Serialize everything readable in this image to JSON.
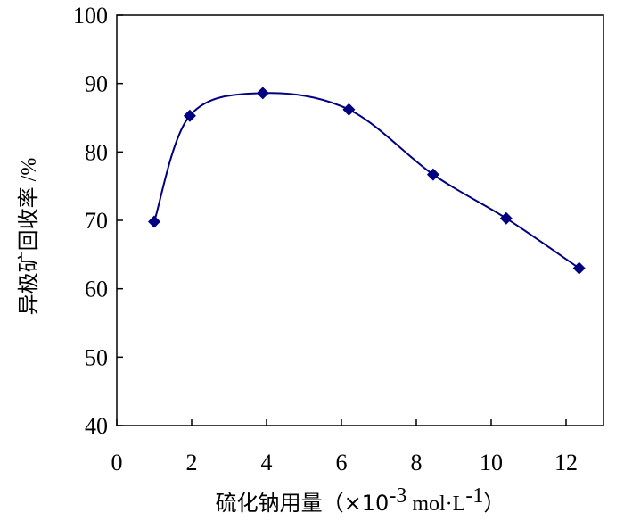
{
  "chart_data": {
    "type": "line",
    "title": "",
    "xlabel": "硫化钠用量（×10-3 mol·L-1）",
    "xlabel_parts": {
      "main": "硫化钠用量（×10",
      "exp1": "-3",
      "middle": " mol·L",
      "exp2": "-1",
      "end": "）"
    },
    "ylabel": "异极矿回收率 /%",
    "ylabel_parts": {
      "main": "异极矿回收率",
      "unit": " /%"
    },
    "xlim": [
      0,
      13
    ],
    "ylim": [
      40,
      100
    ],
    "xticks": [
      0,
      2,
      4,
      6,
      8,
      10,
      12
    ],
    "yticks": [
      40,
      50,
      60,
      70,
      80,
      90,
      100
    ],
    "grid": false,
    "smoothed": true,
    "series": [
      {
        "color": "#000080",
        "marker": "diamond",
        "x": [
          1.0,
          1.95,
          3.9,
          6.2,
          8.45,
          10.4,
          12.35
        ],
        "y": [
          69.8,
          85.3,
          88.6,
          86.2,
          76.7,
          70.3,
          63.0
        ]
      }
    ]
  }
}
